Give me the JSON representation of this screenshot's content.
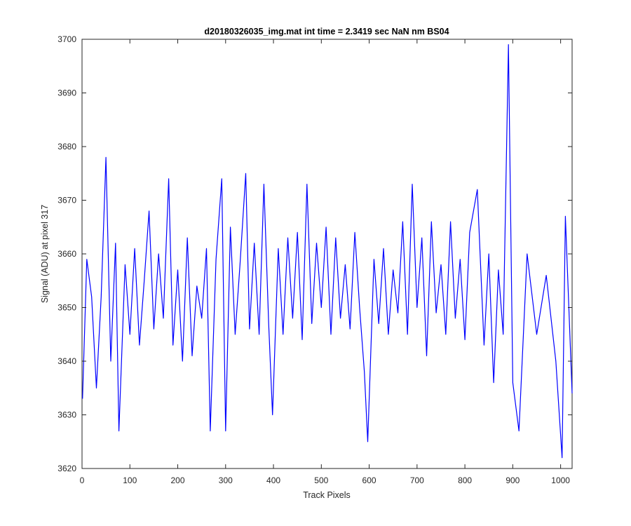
{
  "chart_data": {
    "type": "line",
    "title": "d20180326035_img.mat int time = 2.3419 sec  NaN nm BS04",
    "xlabel": "Track Pixels",
    "ylabel": "Signal (ADU) at pixel 317",
    "xlim": [
      0,
      1024
    ],
    "ylim": [
      3620,
      3700
    ],
    "xticks": [
      0,
      100,
      200,
      300,
      400,
      500,
      600,
      700,
      800,
      900,
      1000
    ],
    "yticks": [
      3620,
      3630,
      3640,
      3650,
      3660,
      3670,
      3680,
      3690,
      3700
    ],
    "grid": false,
    "line_color": "#0000ff",
    "series": [
      {
        "x": [
          1,
          10,
          20,
          30,
          40,
          50,
          60,
          70,
          77,
          90,
          100,
          110,
          120,
          130,
          140,
          150,
          160,
          170,
          181,
          190,
          200,
          210,
          220,
          230,
          240,
          250,
          260,
          268,
          280,
          292,
          300,
          310,
          320,
          330,
          342,
          350,
          360,
          370,
          380,
          390,
          398,
          410,
          420,
          430,
          440,
          450,
          460,
          470,
          480,
          490,
          500,
          510,
          520,
          530,
          540,
          550,
          560,
          570,
          580,
          590,
          597,
          610,
          620,
          630,
          640,
          650,
          660,
          670,
          680,
          690,
          700,
          710,
          720,
          730,
          740,
          750,
          760,
          770,
          780,
          790,
          800,
          810,
          826,
          840,
          850,
          860,
          870,
          880,
          891,
          900,
          913,
          930,
          950,
          970,
          990,
          1003,
          1010,
          1024
        ],
        "y": [
          3633,
          3659,
          3652,
          3635,
          3652,
          3678,
          3640,
          3662,
          3627,
          3658,
          3645,
          3661,
          3643,
          3655,
          3668,
          3646,
          3660,
          3648,
          3674,
          3643,
          3657,
          3640,
          3663,
          3641,
          3654,
          3648,
          3661,
          3627,
          3659,
          3674,
          3627,
          3665,
          3645,
          3658,
          3675,
          3646,
          3662,
          3645,
          3673,
          3647,
          3630,
          3661,
          3645,
          3663,
          3648,
          3664,
          3644,
          3673,
          3647,
          3662,
          3650,
          3665,
          3645,
          3663,
          3648,
          3658,
          3646,
          3664,
          3650,
          3638,
          3625,
          3659,
          3647,
          3661,
          3645,
          3657,
          3649,
          3666,
          3645,
          3673,
          3650,
          3663,
          3641,
          3666,
          3649,
          3658,
          3645,
          3666,
          3648,
          3659,
          3644,
          3664,
          3672,
          3643,
          3660,
          3636,
          3657,
          3645,
          3699,
          3636,
          3627,
          3660,
          3645,
          3656,
          3640,
          3622,
          3667,
          3634
        ]
      }
    ]
  }
}
